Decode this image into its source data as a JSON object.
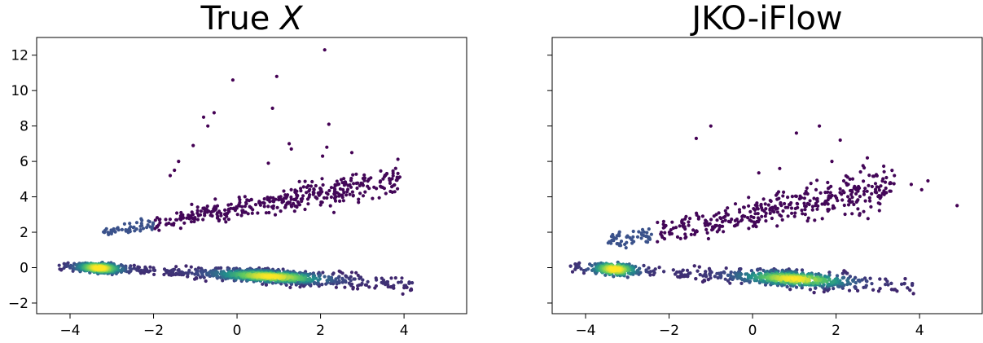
{
  "chart_data": [
    {
      "type": "scatter",
      "title": "True X",
      "title_plain": "True ",
      "title_italic": "X",
      "xlim": [
        -4.8,
        5.5
      ],
      "ylim": [
        -2.6,
        13.0
      ],
      "xticks": [
        "−4",
        "−2",
        "0",
        "2",
        "4"
      ],
      "xtick_values": [
        -4,
        -2,
        0,
        2,
        4
      ],
      "yticks": [
        "−2",
        "0",
        "2",
        "4",
        "6",
        "8",
        "10",
        "12"
      ],
      "ytick_values": [
        -2,
        0,
        2,
        4,
        6,
        8,
        10,
        12
      ],
      "colormap": [
        "#440154",
        "#3b528b",
        "#21918c",
        "#5ec962",
        "#fde725"
      ],
      "outliers": [
        [
          2.1,
          12.3
        ],
        [
          0.95,
          10.8
        ],
        [
          -0.1,
          10.6
        ],
        [
          0.85,
          9.0
        ],
        [
          -0.55,
          8.75
        ],
        [
          -0.8,
          8.5
        ],
        [
          -0.7,
          8.0
        ],
        [
          2.2,
          8.1
        ],
        [
          -1.4,
          6.0
        ],
        [
          -1.05,
          6.9
        ],
        [
          1.25,
          7.0
        ],
        [
          1.3,
          6.7
        ],
        [
          0.75,
          5.9
        ],
        [
          2.15,
          6.8
        ],
        [
          2.05,
          6.3
        ],
        [
          2.75,
          6.5
        ],
        [
          -1.6,
          5.2
        ],
        [
          -1.5,
          5.5
        ]
      ],
      "upper_band": {
        "x_start": -3.2,
        "x_end": 3.9,
        "y_start": 2.0,
        "y_end": 5.0,
        "spread": 0.9
      },
      "lower_band": {
        "x_start": -4.3,
        "x_end": 4.2,
        "y_start": 0.1,
        "y_end": -0.9,
        "spread": 0.45
      },
      "density_peaks": [
        -3.3,
        0.8
      ]
    },
    {
      "type": "scatter",
      "title": "JKO-iFlow",
      "xlim": [
        -4.8,
        5.5
      ],
      "ylim": [
        -2.6,
        13.0
      ],
      "xticks": [
        "−4",
        "−2",
        "0",
        "2",
        "4"
      ],
      "xtick_values": [
        -4,
        -2,
        0,
        2,
        4
      ],
      "yticks": [
        "",
        "",
        "",
        "",
        "",
        "",
        "",
        ""
      ],
      "ytick_values": [
        -2,
        0,
        2,
        4,
        6,
        8,
        10,
        12
      ],
      "colormap": [
        "#440154",
        "#3b528b",
        "#21918c",
        "#5ec962",
        "#fde725"
      ],
      "outliers": [
        [
          -1.35,
          7.3
        ],
        [
          -1.0,
          8.0
        ],
        [
          1.05,
          7.6
        ],
        [
          1.6,
          8.0
        ],
        [
          2.1,
          7.2
        ],
        [
          1.9,
          6.0
        ],
        [
          2.75,
          6.2
        ],
        [
          0.15,
          5.35
        ],
        [
          0.65,
          5.6
        ],
        [
          3.3,
          4.8
        ],
        [
          4.2,
          4.9
        ],
        [
          4.9,
          3.5
        ],
        [
          4.05,
          4.4
        ],
        [
          3.8,
          4.7
        ]
      ],
      "upper_band": {
        "x_start": -3.6,
        "x_end": 3.4,
        "y_start": 1.4,
        "y_end": 4.6,
        "spread": 1.2
      },
      "lower_band": {
        "x_start": -4.4,
        "x_end": 3.9,
        "y_start": 0.05,
        "y_end": -1.0,
        "spread": 0.55
      },
      "density_peaks": [
        -3.3,
        1.0
      ]
    }
  ]
}
